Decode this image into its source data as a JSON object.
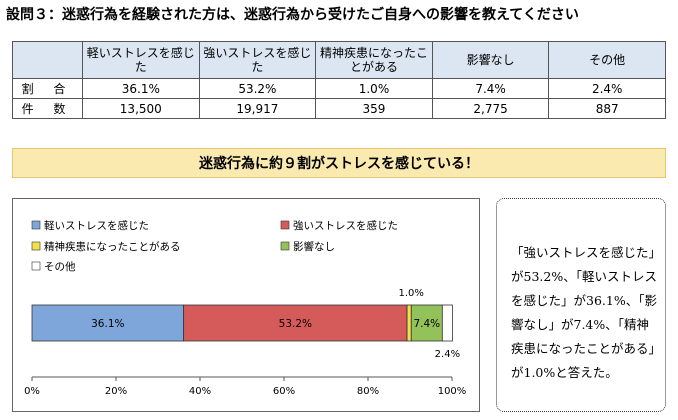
{
  "page": {
    "title": "設問３：迷惑行為を経験された方は、迷惑行為から受けたご自身への影響を教えてください",
    "banner": "迷惑行為に約９割がストレスを感じている！",
    "note": "「強いストレスを感じた」が53.2%、「軽いストレスを感じた」が36.1%、「影響なし」が7.4%、「精神疾患になったことがある」が1.0%と答えた。"
  },
  "table": {
    "headers": [
      "",
      "軽いストレスを感じた",
      "強いストレスを感じた",
      "精神疾患になったことがある",
      "影響なし",
      "その他"
    ],
    "rows": [
      {
        "label": "割 合",
        "cells": [
          "36.1%",
          "53.2%",
          "1.0%",
          "7.4%",
          "2.4%"
        ]
      },
      {
        "label": "件 数",
        "cells": [
          "13,500",
          "19,917",
          "359",
          "2,775",
          "887"
        ]
      }
    ]
  },
  "chart_data": {
    "type": "bar",
    "orientation": "horizontal",
    "stacked": true,
    "series": [
      {
        "name": "軽いストレスを感じた",
        "value": 36.1,
        "label": "36.1%",
        "color": "#7ea6db"
      },
      {
        "name": "強いストレスを感じた",
        "value": 53.2,
        "label": "53.2%",
        "color": "#d55a5a"
      },
      {
        "name": "精神疾患になったことがある",
        "value": 1.0,
        "label": "1.0%",
        "color": "#f2e04a"
      },
      {
        "name": "影響なし",
        "value": 7.4,
        "label": "7.4%",
        "color": "#93c25a"
      },
      {
        "name": "その他",
        "value": 2.4,
        "label": "2.4%",
        "color": "#ffffff"
      }
    ],
    "xlim": [
      0,
      100
    ],
    "xticks": [
      "0%",
      "20%",
      "40%",
      "60%",
      "80%",
      "100%"
    ],
    "legend_position": "top",
    "grid": false
  }
}
